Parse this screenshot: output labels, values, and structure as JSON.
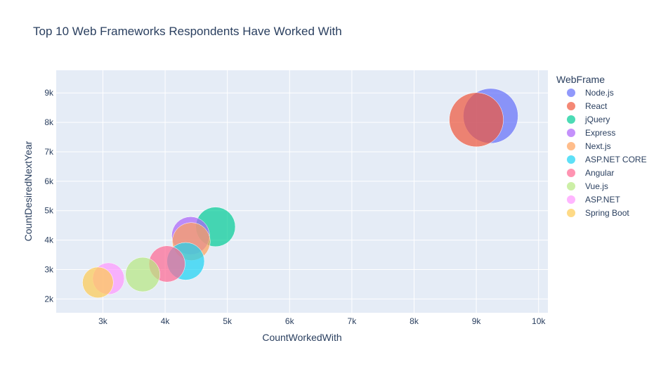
{
  "chart_data": {
    "type": "scatter",
    "title": "Top 10 Web Frameworks Respondents Have Worked With",
    "xlabel": "CountWorkedWith",
    "ylabel": "CountDesiredNextYear",
    "xlim": [
      2250,
      10150
    ],
    "ylim": [
      1530,
      9770
    ],
    "xticks": [
      3000,
      4000,
      5000,
      6000,
      7000,
      8000,
      9000,
      10000
    ],
    "xtick_labels": [
      "3k",
      "4k",
      "5k",
      "6k",
      "7k",
      "8k",
      "9k",
      "10k"
    ],
    "yticks": [
      2000,
      3000,
      4000,
      5000,
      6000,
      7000,
      8000,
      9000
    ],
    "ytick_labels": [
      "2k",
      "3k",
      "4k",
      "5k",
      "6k",
      "7k",
      "8k",
      "9k"
    ],
    "grid": true,
    "legend_title": "WebFrame",
    "legend_position": "right",
    "series": [
      {
        "name": "Node.js",
        "x": 9230,
        "y": 8220,
        "color": "#636efa"
      },
      {
        "name": "React",
        "x": 9000,
        "y": 8090,
        "color": "#ef553b"
      },
      {
        "name": "jQuery",
        "x": 4810,
        "y": 4450,
        "color": "#00cc96"
      },
      {
        "name": "Express",
        "x": 4410,
        "y": 4150,
        "color": "#ab63fa"
      },
      {
        "name": "Next.js",
        "x": 4420,
        "y": 3950,
        "color": "#ffa15a"
      },
      {
        "name": "ASP.NET CORE",
        "x": 4330,
        "y": 3280,
        "color": "#19d3f3"
      },
      {
        "name": "Angular",
        "x": 4030,
        "y": 3190,
        "color": "#ff6692"
      },
      {
        "name": "Vue.js",
        "x": 3640,
        "y": 2830,
        "color": "#b6e880"
      },
      {
        "name": "ASP.NET",
        "x": 3090,
        "y": 2690,
        "color": "#ff97ff"
      },
      {
        "name": "Spring Boot",
        "x": 2920,
        "y": 2560,
        "color": "#fecb52"
      }
    ]
  }
}
